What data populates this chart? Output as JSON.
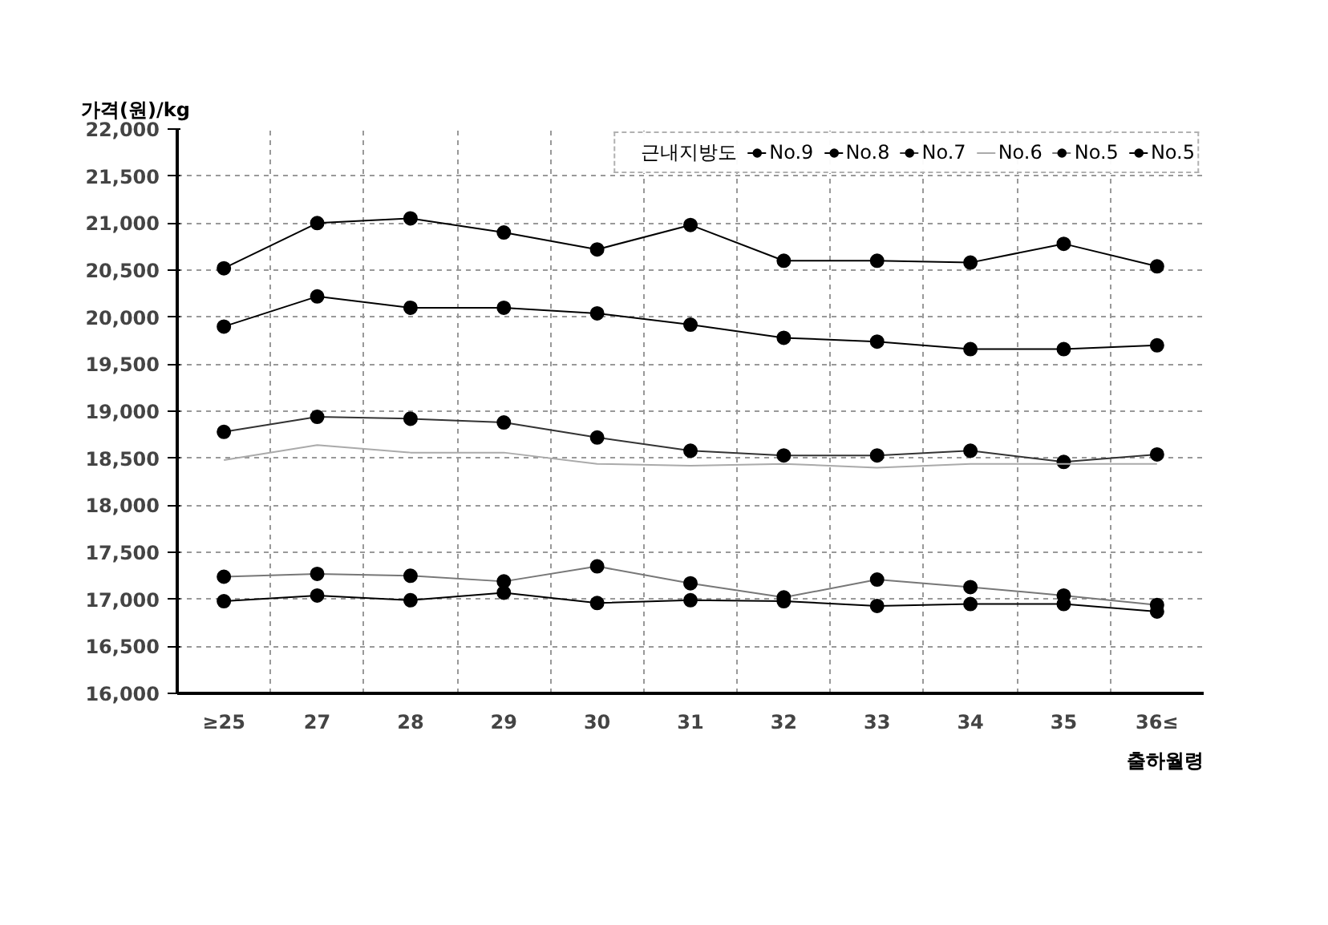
{
  "chart_data": {
    "type": "line",
    "xlabel": "출하월령",
    "ylabel": "가격(원)/kg",
    "legend_title": "근내지방도",
    "categories": [
      "≥25",
      "27",
      "28",
      "29",
      "30",
      "31",
      "32",
      "33",
      "34",
      "35",
      "36≤"
    ],
    "series": [
      {
        "name": "No.9",
        "color": "#000000",
        "marker": "circle",
        "values": [
          20520,
          21000,
          21050,
          20900,
          20720,
          20980,
          20600,
          20600,
          20580,
          20780,
          20540
        ]
      },
      {
        "name": "No.8",
        "color": "#000000",
        "marker": "circle",
        "values": [
          19900,
          20220,
          20100,
          20100,
          20040,
          19920,
          19780,
          19740,
          19660,
          19660,
          19700
        ]
      },
      {
        "name": "No.7",
        "color": "#333333",
        "marker": "circle",
        "values": [
          18780,
          18940,
          18920,
          18880,
          18720,
          18580,
          18530,
          18530,
          18580,
          18460,
          18540
        ]
      },
      {
        "name": "No.6",
        "color": "#aaaaaa",
        "marker": "none",
        "values": [
          18480,
          18640,
          18560,
          18560,
          18440,
          18420,
          18440,
          18400,
          18440,
          18440,
          18440
        ]
      },
      {
        "name": "No.5",
        "color": "#777777",
        "marker": "circle",
        "values": [
          17240,
          17270,
          17250,
          17190,
          17350,
          17170,
          17020,
          17210,
          17130,
          17040,
          16940
        ]
      },
      {
        "name": "No.5",
        "color": "#000000",
        "marker": "circle",
        "values": [
          16980,
          17040,
          16990,
          17070,
          16960,
          16990,
          16980,
          16930,
          16950,
          16950,
          16870
        ]
      }
    ],
    "ylim": [
      16000,
      22000
    ],
    "yticks": [
      {
        "value": 16000,
        "label": "16,000"
      },
      {
        "value": 16500,
        "label": "16,500"
      },
      {
        "value": 17000,
        "label": "17,000"
      },
      {
        "value": 17500,
        "label": "17,500"
      },
      {
        "value": 18000,
        "label": "18,000"
      },
      {
        "value": 18500,
        "label": "18,500"
      },
      {
        "value": 19000,
        "label": "19,000"
      },
      {
        "value": 19500,
        "label": "19,500"
      },
      {
        "value": 20000,
        "label": "20,000"
      },
      {
        "value": 20500,
        "label": "20,500"
      },
      {
        "value": 21000,
        "label": "21,000"
      },
      {
        "value": 21500,
        "label": "21,500"
      },
      {
        "value": 22000,
        "label": "22,000"
      }
    ],
    "grid": true,
    "legend": "top right"
  }
}
